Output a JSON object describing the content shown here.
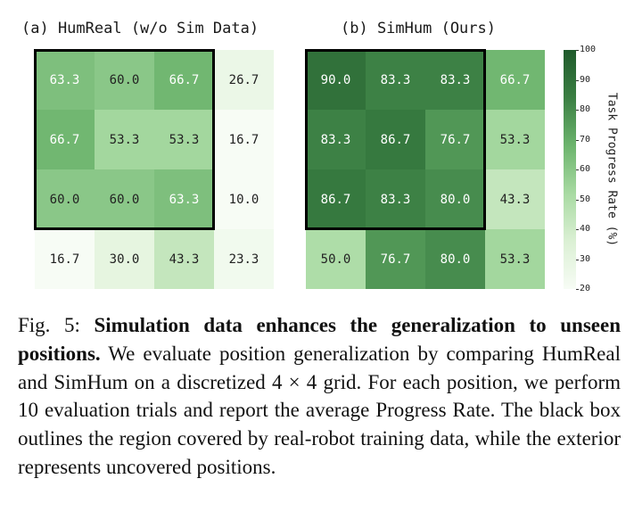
{
  "chart_data": {
    "type": "heatmap",
    "colorbar": {
      "label": "Task Progress Rate (%)",
      "min": 20,
      "max": 100,
      "ticks": [
        20,
        30,
        40,
        50,
        60,
        70,
        80,
        90,
        100
      ]
    },
    "panels": [
      {
        "title": "(a) HumReal (w/o Sim Data)",
        "rows": 4,
        "cols": 4,
        "values": [
          [
            63.3,
            60.0,
            66.7,
            26.7
          ],
          [
            66.7,
            53.3,
            53.3,
            16.7
          ],
          [
            60.0,
            60.0,
            63.3,
            10.0
          ],
          [
            16.7,
            30.0,
            43.3,
            23.3
          ]
        ],
        "labels": [
          [
            "63.3",
            "60.0",
            "66.7",
            "26.7"
          ],
          [
            "66.7",
            "53.3",
            "53.3",
            "16.7"
          ],
          [
            "60.0",
            "60.0",
            "63.3",
            "10.0"
          ],
          [
            "16.7",
            "30.0",
            "43.3",
            "23.3"
          ]
        ],
        "highlight_region": {
          "row_start": 0,
          "row_end": 2,
          "col_start": 0,
          "col_end": 2
        }
      },
      {
        "title": "(b) SimHum (Ours)",
        "rows": 4,
        "cols": 4,
        "values": [
          [
            90.0,
            83.3,
            83.3,
            66.7
          ],
          [
            83.3,
            86.7,
            76.7,
            53.3
          ],
          [
            86.7,
            83.3,
            80.0,
            43.3
          ],
          [
            50.0,
            76.7,
            80.0,
            53.3
          ]
        ],
        "labels": [
          [
            "90.0",
            "83.3",
            "83.3",
            "66.7"
          ],
          [
            "83.3",
            "86.7",
            "76.7",
            "53.3"
          ],
          [
            "86.7",
            "83.3",
            "80.0",
            "43.3"
          ],
          [
            "50.0",
            "76.7",
            "80.0",
            "53.3"
          ]
        ],
        "highlight_region": {
          "row_start": 0,
          "row_end": 2,
          "col_start": 0,
          "col_end": 2
        }
      }
    ]
  },
  "caption": {
    "prefix": "Fig. 5: ",
    "bold": "Simulation data enhances the generalization to unseen positions.",
    "text": " We evaluate position generalization by comparing HumReal and SimHum on a discretized 4 × 4 grid. For each position, we perform 10 evaluation trials and report the average Progress Rate. The black box outlines the region covered by real-robot training data, while the exterior represents uncovered positions."
  }
}
